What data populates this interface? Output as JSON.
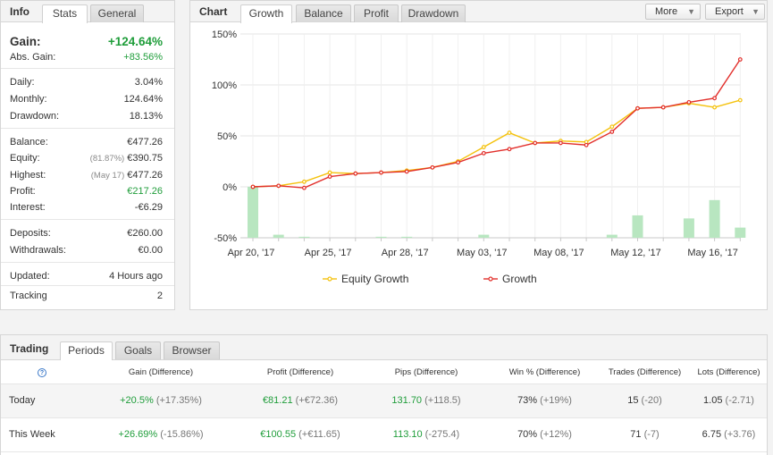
{
  "info": {
    "title": "Info",
    "tabs": [
      {
        "label": "Stats"
      },
      {
        "label": "General"
      }
    ],
    "gain": {
      "label": "Gain:",
      "value": "+124.64%"
    },
    "abs_gain": {
      "label": "Abs. Gain:",
      "value": "+83.56%"
    },
    "daily": {
      "label": "Daily:",
      "value": "3.04%"
    },
    "monthly": {
      "label": "Monthly:",
      "value": "124.64%"
    },
    "drawdown": {
      "label": "Drawdown:",
      "value": "18.13%"
    },
    "balance": {
      "label": "Balance:",
      "value": "€477.26"
    },
    "equity": {
      "label": "Equity:",
      "note": "(81.87%)",
      "value": "€390.75"
    },
    "highest": {
      "label": "Highest:",
      "note": "(May 17)",
      "value": "€477.26"
    },
    "profit": {
      "label": "Profit:",
      "value": "€217.26"
    },
    "interest": {
      "label": "Interest:",
      "value": "-€6.29"
    },
    "deposits": {
      "label": "Deposits:",
      "value": "€260.00"
    },
    "withdrawals": {
      "label": "Withdrawals:",
      "value": "€0.00"
    },
    "updated": {
      "label": "Updated:",
      "value": "4 Hours ago"
    },
    "tracking": {
      "label": "Tracking",
      "value": "2"
    }
  },
  "chart_panel": {
    "title": "Chart",
    "tabs": [
      {
        "label": "Growth"
      },
      {
        "label": "Balance"
      },
      {
        "label": "Profit"
      },
      {
        "label": "Drawdown"
      }
    ],
    "more_label": "More",
    "export_label": "Export"
  },
  "chart_data": {
    "type": "line",
    "y_ticks": [
      "150%",
      "100%",
      "50%",
      "0%",
      "-50%"
    ],
    "x_tick_labels": [
      "Apr 20, '17",
      "Apr 25, '17",
      "Apr 28, '17",
      "May 03, '17",
      "May 08, '17",
      "May 12, '17",
      "May 16, '17"
    ],
    "ylim": [
      -50,
      150
    ],
    "series": [
      {
        "name": "Equity Growth",
        "color": "#f4c20d",
        "values": [
          0,
          1,
          5,
          14,
          13,
          14,
          16,
          19,
          25,
          39,
          53,
          43,
          45,
          44,
          59,
          77,
          78,
          82,
          78,
          85
        ]
      },
      {
        "name": "Growth",
        "color": "#e2302c",
        "values": [
          0,
          1,
          -1,
          10,
          13,
          14,
          15,
          19,
          24,
          33,
          37,
          43,
          43,
          41,
          54,
          77,
          78,
          83,
          87,
          125
        ]
      }
    ],
    "bars": {
      "color": "#b8e6c0",
      "values": [
        0,
        -47,
        -49,
        -50,
        -50,
        -49,
        -49,
        -50,
        -50,
        -47,
        -50,
        -50,
        -50,
        -50,
        -47,
        -28,
        -50,
        -31,
        -13,
        -40
      ]
    }
  },
  "trading": {
    "title": "Trading",
    "tabs": [
      {
        "label": "Periods"
      },
      {
        "label": "Goals"
      },
      {
        "label": "Browser"
      }
    ],
    "help_icon": "?",
    "columns": [
      "Gain (Difference)",
      "Profit (Difference)",
      "Pips (Difference)",
      "Win % (Difference)",
      "Trades (Difference)",
      "Lots (Difference)"
    ],
    "rows": [
      {
        "label": "Today",
        "gain": "+20.5%",
        "gain_diff": "(+17.35%)",
        "profit": "€81.21",
        "profit_diff": "(+€72.36)",
        "pips": "131.70",
        "pips_diff": "(+118.5)",
        "win": "73%",
        "win_diff": "(+19%)",
        "trades": "15",
        "trades_diff": "(-20)",
        "lots": "1.05",
        "lots_diff": "(-2.71)"
      },
      {
        "label": "This Week",
        "gain": "+26.69%",
        "gain_diff": "(-15.86%)",
        "profit": "€100.55",
        "profit_diff": "(+€11.65)",
        "pips": "113.10",
        "pips_diff": "(-275.4)",
        "win": "70%",
        "win_diff": "(+12%)",
        "trades": "71",
        "trades_diff": "(-7)",
        "lots": "6.75",
        "lots_diff": "(+3.76)"
      }
    ]
  }
}
